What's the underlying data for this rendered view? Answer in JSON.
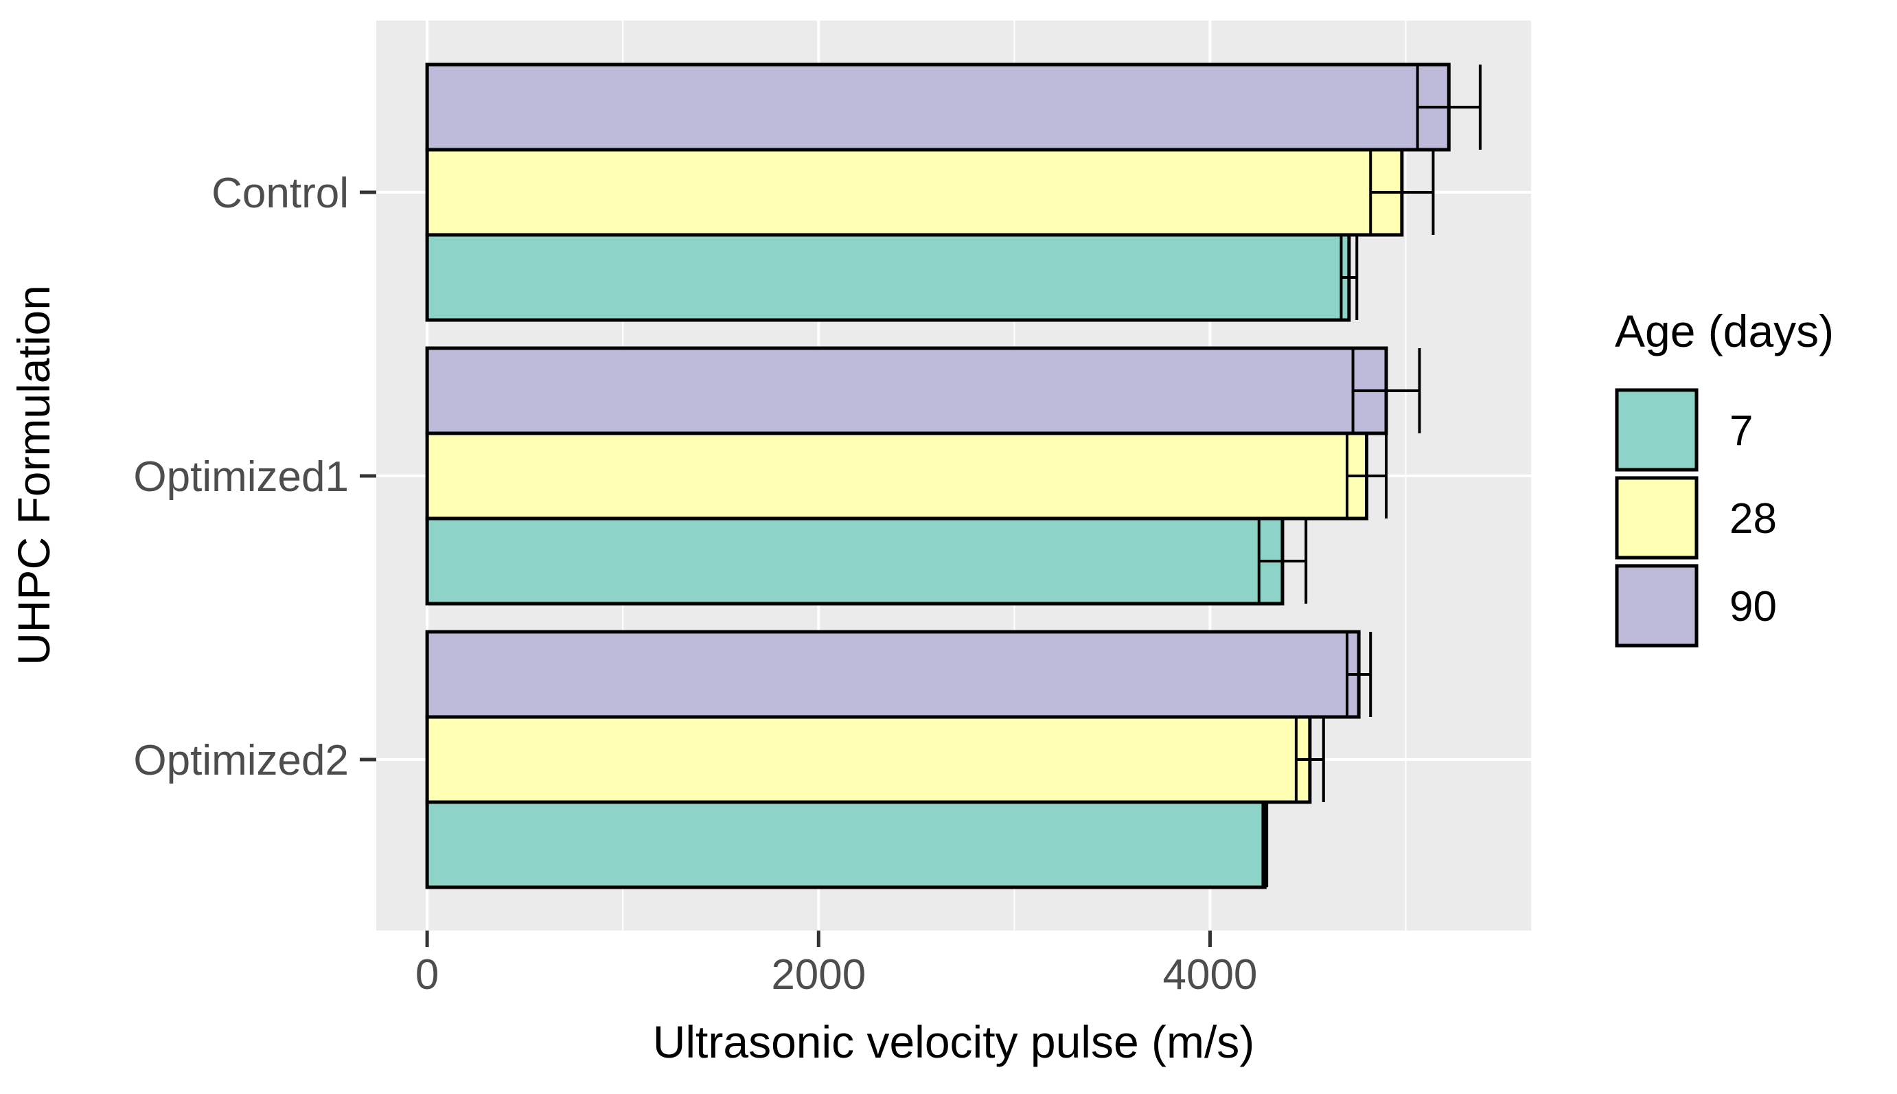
{
  "chart_data": {
    "type": "bar",
    "orientation": "horizontal",
    "title": "",
    "xlabel": "Ultrasonic velocity pulse (m/s)",
    "ylabel": "UHPC Formulation",
    "xlim": [
      -260,
      5640
    ],
    "x_ticks": [
      0,
      2000,
      4000
    ],
    "x_tick_labels": [
      "0",
      "2000",
      "4000"
    ],
    "x_minor_ticks": [
      1000,
      3000,
      5000
    ],
    "grid": true,
    "categories": [
      "Control",
      "Optimized1",
      "Optimized2"
    ],
    "series": [
      {
        "name": "7",
        "color": "#8DD3C7",
        "values": [
          4710,
          4370,
          4280
        ],
        "errors": [
          40,
          120,
          10
        ]
      },
      {
        "name": "28",
        "color": "#FFFFB3",
        "values": [
          4980,
          4800,
          4510
        ],
        "errors": [
          160,
          100,
          70
        ]
      },
      {
        "name": "90",
        "color": "#BEBADA",
        "values": [
          5220,
          4900,
          4760
        ],
        "errors": [
          160,
          170,
          60
        ]
      }
    ],
    "legend": {
      "title": "Age (days)",
      "position": "right",
      "entries": [
        "7",
        "28",
        "90"
      ]
    }
  }
}
